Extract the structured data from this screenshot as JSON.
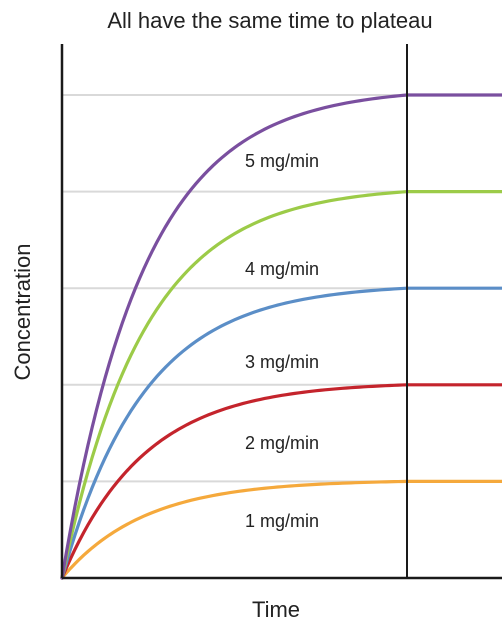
{
  "chart_data": {
    "type": "line",
    "title": "All have the same time to plateau",
    "xlabel": "Time",
    "ylabel": "Concentration",
    "x_ticks": [],
    "y_ticks": [],
    "xlim": [
      0,
      1.2
    ],
    "ylim": [
      0,
      5.3
    ],
    "grid": "horizontal at plateau levels",
    "legend": "none (series labeled inline)",
    "plateau_time": 1.0,
    "curve": "exponential rise to plateau",
    "series": [
      {
        "name": "1 mg/min",
        "plateau": 1,
        "color": "#f5a93c"
      },
      {
        "name": "2 mg/min",
        "plateau": 2,
        "color": "#c4242c"
      },
      {
        "name": "3 mg/min",
        "plateau": 3,
        "color": "#5b8ec7"
      },
      {
        "name": "4 mg/min",
        "plateau": 4,
        "color": "#9ccb48"
      },
      {
        "name": "5 mg/min",
        "plateau": 5,
        "color": "#7a4f9f"
      }
    ],
    "colors": {
      "axis": "#1a1a1a",
      "gridline": "#d9d9d9",
      "plateau_line": "#1a1a1a"
    }
  }
}
